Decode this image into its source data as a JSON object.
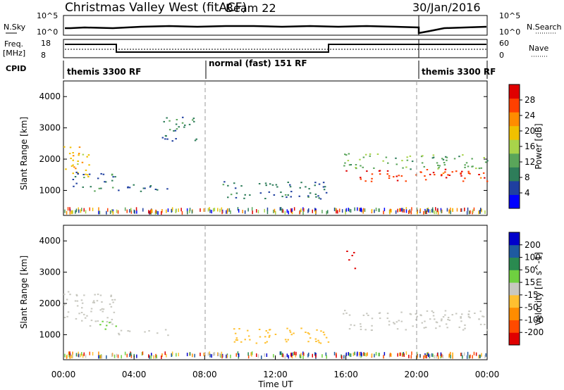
{
  "header": {
    "station": "Christmas Valley West (fitACF)",
    "beam": "Beam 22",
    "date": "30/Jan/2016"
  },
  "noise_panel": {
    "left_label": "N.Sky",
    "left_ticks": [
      "10^5",
      "10^0"
    ],
    "right_label": "N.Search",
    "right_ticks": [
      "10^5",
      "10^0"
    ]
  },
  "freq_panel": {
    "left_label_1": "Freq.",
    "left_label_2": "[MHz]",
    "left_ticks": [
      "18",
      "8"
    ],
    "right_label": "Nave",
    "right_ticks": [
      "60",
      "0"
    ],
    "freq_steps": [
      {
        "start_h": 0,
        "end_h": 3,
        "level": "high"
      },
      {
        "start_h": 3,
        "end_h": 15,
        "level": "low"
      },
      {
        "start_h": 15,
        "end_h": 24,
        "level": "high"
      }
    ]
  },
  "cpid_panel": {
    "label": "CPID",
    "segments": [
      {
        "start_h": 0,
        "end_h": 8,
        "name": "themis 3300 RF"
      },
      {
        "start_h": 8,
        "end_h": 20,
        "name": "normal (fast) 151 RF"
      },
      {
        "start_h": 20,
        "end_h": 24,
        "name": "themis 3300 RF"
      }
    ]
  },
  "colors": {
    "power_scale": [
      "#0000ff",
      "#1f3fa0",
      "#2e7d5a",
      "#5aa55a",
      "#a8d34a",
      "#f0c000",
      "#ff8c00",
      "#ff4000",
      "#e00000"
    ],
    "velocity_scale": [
      "#0000cc",
      "#1e5aa0",
      "#2a8a50",
      "#6fd040",
      "#c8c8c0",
      "#ffc030",
      "#ff8c00",
      "#ff4a00",
      "#e00000"
    ]
  },
  "chart_data": [
    {
      "type": "heatmap",
      "panel": "power",
      "x_unit": "hours UT",
      "xlim": [
        0,
        24
      ],
      "ylim": [
        200,
        4500
      ],
      "ylabel": "Slant Range [km]",
      "yticks": [
        "1000",
        "2000",
        "3000",
        "4000"
      ],
      "colorbar": {
        "label": "Power [dB]",
        "ticks": [
          "4",
          "8",
          "12",
          "16",
          "20",
          "24",
          "28"
        ],
        "range": [
          0,
          30
        ]
      },
      "regions": [
        {
          "x0": 0.0,
          "x1": 1.5,
          "y0": 1400,
          "y1": 2500,
          "value": 18
        },
        {
          "x0": 0.5,
          "x1": 3.0,
          "y0": 1000,
          "y1": 1600,
          "value": 8
        },
        {
          "x0": 3.0,
          "x1": 6.0,
          "y0": 950,
          "y1": 1200,
          "value": 6
        },
        {
          "x0": 5.5,
          "x1": 7.5,
          "y0": 2600,
          "y1": 3400,
          "value": 8
        },
        {
          "x0": 9.0,
          "x1": 15.0,
          "y0": 750,
          "y1": 1300,
          "value": 8
        },
        {
          "x0": 15.8,
          "x1": 24.0,
          "y0": 1300,
          "y1": 1700,
          "value": 26
        },
        {
          "x0": 15.8,
          "x1": 24.0,
          "y0": 1700,
          "y1": 2200,
          "value": 12
        }
      ]
    },
    {
      "type": "heatmap",
      "panel": "velocity",
      "x_unit": "hours UT",
      "xlim": [
        0,
        24
      ],
      "ylim": [
        200,
        4500
      ],
      "ylabel": "Slant Range [km]",
      "xlabel": "Time UT",
      "yticks": [
        "1000",
        "2000",
        "3000",
        "4000"
      ],
      "xticks": [
        "00:00",
        "04:00",
        "08:00",
        "12:00",
        "16:00",
        "20:00",
        "00:00"
      ],
      "colorbar": {
        "label": "Velocity [m s^-1]",
        "ticks": [
          "200",
          "100",
          "50",
          "15",
          "-15",
          "-50",
          "-100",
          "-200"
        ],
        "range": [
          -250,
          250
        ]
      },
      "regions": [
        {
          "x0": 0.0,
          "x1": 3.0,
          "y0": 1300,
          "y1": 2400,
          "value": 0
        },
        {
          "x0": 1.8,
          "x1": 3.0,
          "y0": 1150,
          "y1": 1450,
          "value": 40
        },
        {
          "x0": 3.0,
          "x1": 6.0,
          "y0": 1000,
          "y1": 1200,
          "value": 0
        },
        {
          "x0": 9.0,
          "x1": 15.0,
          "y0": 750,
          "y1": 1250,
          "value": -40
        },
        {
          "x0": 15.8,
          "x1": 24.0,
          "y0": 1150,
          "y1": 1800,
          "value": 0
        },
        {
          "x0": 16.0,
          "x1": 16.5,
          "y0": 3100,
          "y1": 3700,
          "value": -220
        }
      ]
    }
  ]
}
